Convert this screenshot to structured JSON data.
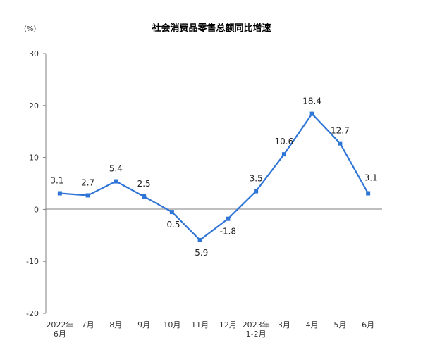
{
  "chart_data": {
    "type": "line",
    "title": "社会消费品零售总额同比增速",
    "ylabel": "(%)",
    "categories": [
      [
        "2022年",
        "6月"
      ],
      [
        "7月"
      ],
      [
        "8月"
      ],
      [
        "9月"
      ],
      [
        "10月"
      ],
      [
        "11月"
      ],
      [
        "12月"
      ],
      [
        "2023年",
        "1-2月"
      ],
      [
        "3月"
      ],
      [
        "4月"
      ],
      [
        "5月"
      ],
      [
        "6月"
      ]
    ],
    "series": [
      {
        "values": [
          3.1,
          2.7,
          5.4,
          2.5,
          -0.5,
          -5.9,
          -1.8,
          3.5,
          10.6,
          18.4,
          12.7,
          3.1
        ]
      }
    ],
    "value_labels": [
      "3.1",
      "2.7",
      "5.4",
      "2.5",
      "-0.5",
      "-5.9",
      "-1.8",
      "3.5",
      "10.6",
      "18.4",
      "12.7",
      "3.1"
    ],
    "yticks": [
      30,
      20,
      10,
      0,
      -10,
      -20
    ],
    "ytick_labels": [
      "30",
      "20",
      "10",
      "0",
      "-10",
      "-20"
    ],
    "ylim": [
      -20,
      30
    ],
    "grid": false,
    "legend": "none",
    "colors": {
      "line": "#2e75d6",
      "marker": "#2e75d6"
    }
  }
}
